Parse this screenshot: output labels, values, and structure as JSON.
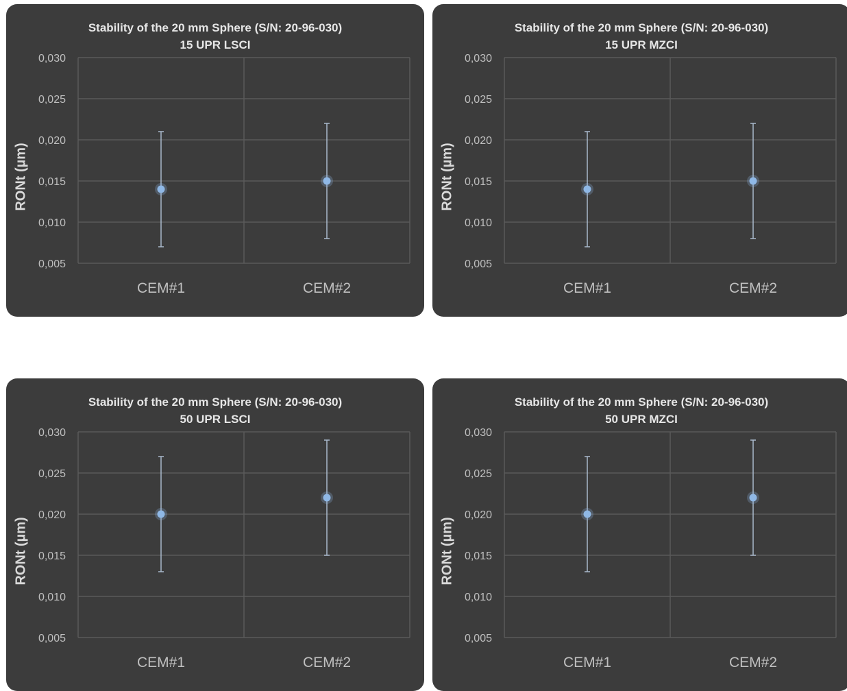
{
  "chart_data": [
    {
      "type": "scatter",
      "title": "Stability of the  20 mm Sphere (S/N: 20-96-030)",
      "subtitle": "15 UPR LSCI",
      "ylabel": "RONt (µm)",
      "categories": [
        "CEM#1",
        "CEM#2"
      ],
      "values": [
        0.014,
        0.015
      ],
      "error_low": [
        0.007,
        0.008
      ],
      "error_high": [
        0.021,
        0.022
      ],
      "ylim": [
        0.005,
        0.03
      ],
      "yticks": [
        "0,005",
        "0,010",
        "0,015",
        "0,020",
        "0,025",
        "0,030"
      ],
      "grid": true,
      "colors": {
        "background": "#3c3c3c",
        "marker": "#8fb8e6",
        "errorbar": "#aab9cc",
        "grid": "#5a5a5a"
      }
    },
    {
      "type": "scatter",
      "title": "Stability of the  20 mm Sphere (S/N: 20-96-030)",
      "subtitle": "15 UPR MZCI",
      "ylabel": "RONt (µm)",
      "categories": [
        "CEM#1",
        "CEM#2"
      ],
      "values": [
        0.014,
        0.015
      ],
      "error_low": [
        0.007,
        0.008
      ],
      "error_high": [
        0.021,
        0.022
      ],
      "ylim": [
        0.005,
        0.03
      ],
      "yticks": [
        "0,005",
        "0,010",
        "0,015",
        "0,020",
        "0,025",
        "0,030"
      ],
      "grid": true,
      "colors": {
        "background": "#3c3c3c",
        "marker": "#8fb8e6",
        "errorbar": "#aab9cc",
        "grid": "#5a5a5a"
      }
    },
    {
      "type": "scatter",
      "title": "Stability of the  20 mm Sphere (S/N: 20-96-030)",
      "subtitle": "50 UPR LSCI",
      "ylabel": "RONt (µm)",
      "categories": [
        "CEM#1",
        "CEM#2"
      ],
      "values": [
        0.02,
        0.022
      ],
      "error_low": [
        0.013,
        0.015
      ],
      "error_high": [
        0.027,
        0.029
      ],
      "ylim": [
        0.005,
        0.03
      ],
      "yticks": [
        "0,005",
        "0,010",
        "0,015",
        "0,020",
        "0,025",
        "0,030"
      ],
      "grid": true,
      "colors": {
        "background": "#3c3c3c",
        "marker": "#8fb8e6",
        "errorbar": "#aab9cc",
        "grid": "#5a5a5a"
      }
    },
    {
      "type": "scatter",
      "title": "Stability of the  20 mm Sphere (S/N: 20-96-030)",
      "subtitle": "50 UPR MZCI",
      "ylabel": "RONt (µm)",
      "categories": [
        "CEM#1",
        "CEM#2"
      ],
      "values": [
        0.02,
        0.022
      ],
      "error_low": [
        0.013,
        0.015
      ],
      "error_high": [
        0.027,
        0.029
      ],
      "ylim": [
        0.005,
        0.03
      ],
      "yticks": [
        "0,005",
        "0,010",
        "0,015",
        "0,020",
        "0,025",
        "0,030"
      ],
      "grid": true,
      "colors": {
        "background": "#3c3c3c",
        "marker": "#8fb8e6",
        "errorbar": "#aab9cc",
        "grid": "#5a5a5a"
      }
    }
  ]
}
